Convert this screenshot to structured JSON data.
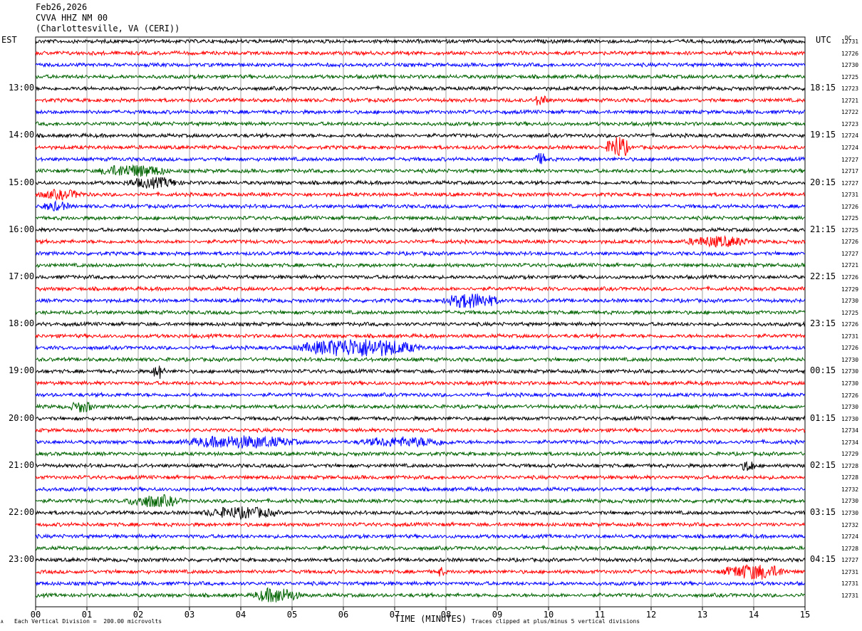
{
  "header": {
    "date": "Feb26,2026",
    "station": "CVVA HHZ NM 00",
    "location": "(Charlottesville, VA (CERI))"
  },
  "axes": {
    "left_tz": "EST",
    "right_tz": "UTC",
    "dc_label": "DC",
    "xlabel": "TIME (MINUTES)",
    "footer_left": "Each Vertical Division =  200.00 microvolts",
    "footer_right": "Traces clipped at plus/minus 5 vertical divisions",
    "corner_mark": "A"
  },
  "colors": {
    "cycle": [
      "#000000",
      "#ff0000",
      "#0000ff",
      "#006400"
    ],
    "grid": "#000000",
    "background": "#ffffff"
  },
  "chart_data": {
    "type": "line",
    "title": "",
    "xlabel": "TIME (MINUTES)",
    "xlim": [
      0,
      15
    ],
    "x_ticks": [
      "00",
      "01",
      "02",
      "03",
      "04",
      "05",
      "06",
      "07",
      "08",
      "09",
      "10",
      "11",
      "12",
      "13",
      "14",
      "15"
    ],
    "hour_rows": [
      {
        "row": 4,
        "est": "13:00",
        "utc": "18:15"
      },
      {
        "row": 8,
        "est": "14:00",
        "utc": "19:15"
      },
      {
        "row": 12,
        "est": "15:00",
        "utc": "20:15"
      },
      {
        "row": 16,
        "est": "16:00",
        "utc": "21:15"
      },
      {
        "row": 20,
        "est": "17:00",
        "utc": "22:15"
      },
      {
        "row": 24,
        "est": "18:00",
        "utc": "23:15"
      },
      {
        "row": 28,
        "est": "19:00",
        "utc": "00:15"
      },
      {
        "row": 32,
        "est": "20:00",
        "utc": "01:15"
      },
      {
        "row": 36,
        "est": "21:00",
        "utc": "02:15"
      },
      {
        "row": 40,
        "est": "22:00",
        "utc": "03:15"
      },
      {
        "row": 44,
        "est": "23:00",
        "utc": "04:15"
      }
    ],
    "dc_offsets": [
      "12731",
      "12726",
      "12730",
      "12725",
      "12723",
      "12721",
      "12722",
      "12723",
      "12724",
      "12724",
      "12727",
      "12717",
      "12727",
      "12731",
      "12726",
      "12725",
      "12725",
      "12726",
      "12727",
      "12721",
      "12726",
      "12729",
      "12730",
      "12725",
      "12726",
      "12731",
      "12726",
      "12730",
      "12730",
      "12730",
      "12726",
      "12730",
      "12730",
      "12734",
      "12734",
      "12729",
      "12728",
      "12728",
      "12732",
      "12730",
      "12730",
      "12732",
      "12724",
      "12728",
      "12727",
      "12731",
      "12731",
      "12731"
    ],
    "events": [
      {
        "row": 5,
        "minute": 9.85,
        "width": 0.3,
        "amp": 2.0
      },
      {
        "row": 9,
        "minute": 11.35,
        "width": 0.5,
        "amp": 4.5
      },
      {
        "row": 10,
        "minute": 9.85,
        "width": 0.3,
        "amp": 2.0
      },
      {
        "row": 11,
        "minute": 1.9,
        "width": 1.5,
        "amp": 2.2
      },
      {
        "row": 12,
        "minute": 2.3,
        "width": 1.2,
        "amp": 1.8
      },
      {
        "row": 13,
        "minute": 0.5,
        "width": 1.0,
        "amp": 1.5
      },
      {
        "row": 14,
        "minute": 0.4,
        "width": 0.6,
        "amp": 1.5
      },
      {
        "row": 17,
        "minute": 13.3,
        "width": 1.4,
        "amp": 1.8
      },
      {
        "row": 22,
        "minute": 8.5,
        "width": 1.2,
        "amp": 2.8
      },
      {
        "row": 26,
        "minute": 6.3,
        "width": 2.6,
        "amp": 3.5
      },
      {
        "row": 28,
        "minute": 2.4,
        "width": 0.3,
        "amp": 2.5
      },
      {
        "row": 31,
        "minute": 0.9,
        "width": 0.5,
        "amp": 2.0
      },
      {
        "row": 34,
        "minute": 4.0,
        "width": 2.5,
        "amp": 2.2
      },
      {
        "row": 34,
        "minute": 7.2,
        "width": 2.0,
        "amp": 1.6
      },
      {
        "row": 36,
        "minute": 13.9,
        "width": 0.3,
        "amp": 2.2
      },
      {
        "row": 39,
        "minute": 2.3,
        "width": 1.2,
        "amp": 2.2
      },
      {
        "row": 40,
        "minute": 4.0,
        "width": 1.6,
        "amp": 2.0
      },
      {
        "row": 45,
        "minute": 7.9,
        "width": 0.2,
        "amp": 1.5
      },
      {
        "row": 45,
        "minute": 14.0,
        "width": 1.4,
        "amp": 2.8
      },
      {
        "row": 47,
        "minute": 4.7,
        "width": 1.0,
        "amp": 2.8
      }
    ]
  }
}
